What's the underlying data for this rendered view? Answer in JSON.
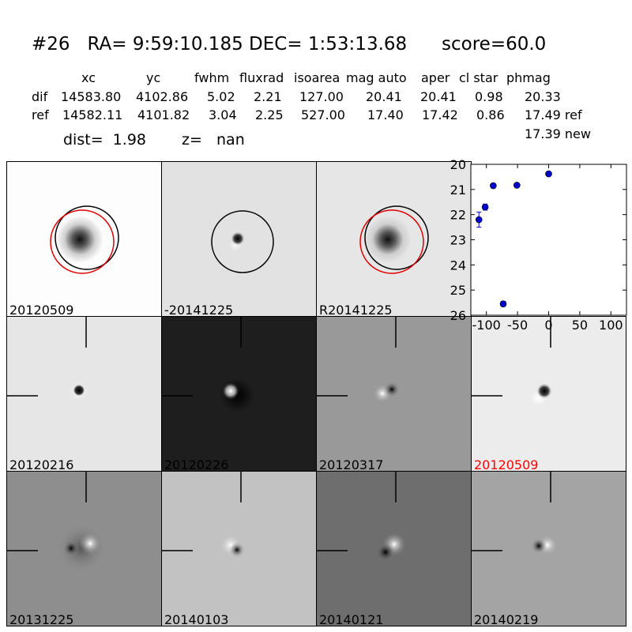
{
  "header": {
    "title": "#26   RA= 9:59:10.185 DEC= 1:53:13.68      score=60.0",
    "col_xc": "xc",
    "col_yc": "yc",
    "col_fwhm": "fwhm",
    "col_fluxrad": "fluxrad",
    "col_isoarea": "isoarea",
    "col_magauto": "mag auto",
    "col_aper": "aper",
    "col_clstar": "cl star",
    "col_phmag": "phmag",
    "dif_label": "dif",
    "dif_xc": "14583.80",
    "dif_yc": "4102.86",
    "dif_fwhm": "5.02",
    "dif_fluxrad": "2.21",
    "dif_isoarea": "127.00",
    "dif_magauto": "20.41",
    "dif_aper": "20.41",
    "dif_clstar": "0.98",
    "dif_phmag": "20.33",
    "ref_label": "ref",
    "ref_xc": "14582.11",
    "ref_yc": "4101.82",
    "ref_fwhm": "3.04",
    "ref_fluxrad": "2.25",
    "ref_isoarea": "527.00",
    "ref_magauto": "17.40",
    "ref_aper": "17.42",
    "ref_clstar": "0.86",
    "ref_phmag": "17.49 ref",
    "new_phmag": "17.39 new",
    "dist": "dist=  1.98",
    "z": "z=   nan"
  },
  "panels": [
    {
      "label": "20120509",
      "label_color": "#000000"
    },
    {
      "label": "-20141225",
      "label_color": "#000000"
    },
    {
      "label": "R20141225",
      "label_color": "#000000"
    },
    {
      "label": "20120216",
      "label_color": "#000000"
    },
    {
      "label": "20120226",
      "label_color": "#000000"
    },
    {
      "label": "20120317",
      "label_color": "#000000"
    },
    {
      "label": "20120509",
      "label_color": "#ff0000"
    },
    {
      "label": "20131225",
      "label_color": "#000000"
    },
    {
      "label": "20140103",
      "label_color": "#000000"
    },
    {
      "label": "20140121",
      "label_color": "#000000"
    },
    {
      "label": "20140219",
      "label_color": "#000000"
    }
  ],
  "chart_data": {
    "type": "scatter",
    "title": "",
    "xlabel": "",
    "ylabel": "",
    "xlim": [
      -125,
      125
    ],
    "ylim": [
      26,
      20
    ],
    "y_inverted": true,
    "xticks": [
      "-100",
      "-50",
      "0",
      "50",
      "100"
    ],
    "xtick_values": [
      -100,
      -50,
      0,
      50,
      100
    ],
    "yticks": [
      "20",
      "21",
      "22",
      "23",
      "24",
      "25",
      "26"
    ],
    "ytick_values": [
      20,
      21,
      22,
      23,
      24,
      25,
      26
    ],
    "marker_color": "#0000cc",
    "points": [
      {
        "x": -112,
        "y": 22.2,
        "err": 0.3
      },
      {
        "x": -102,
        "y": 21.7,
        "err": 0.12
      },
      {
        "x": -89,
        "y": 20.85,
        "err": 0.05
      },
      {
        "x": -73,
        "y": 25.55,
        "err": 0.1
      },
      {
        "x": -51,
        "y": 20.83,
        "err": 0.05
      },
      {
        "x": 0,
        "y": 20.38,
        "err": 0.04
      }
    ]
  }
}
